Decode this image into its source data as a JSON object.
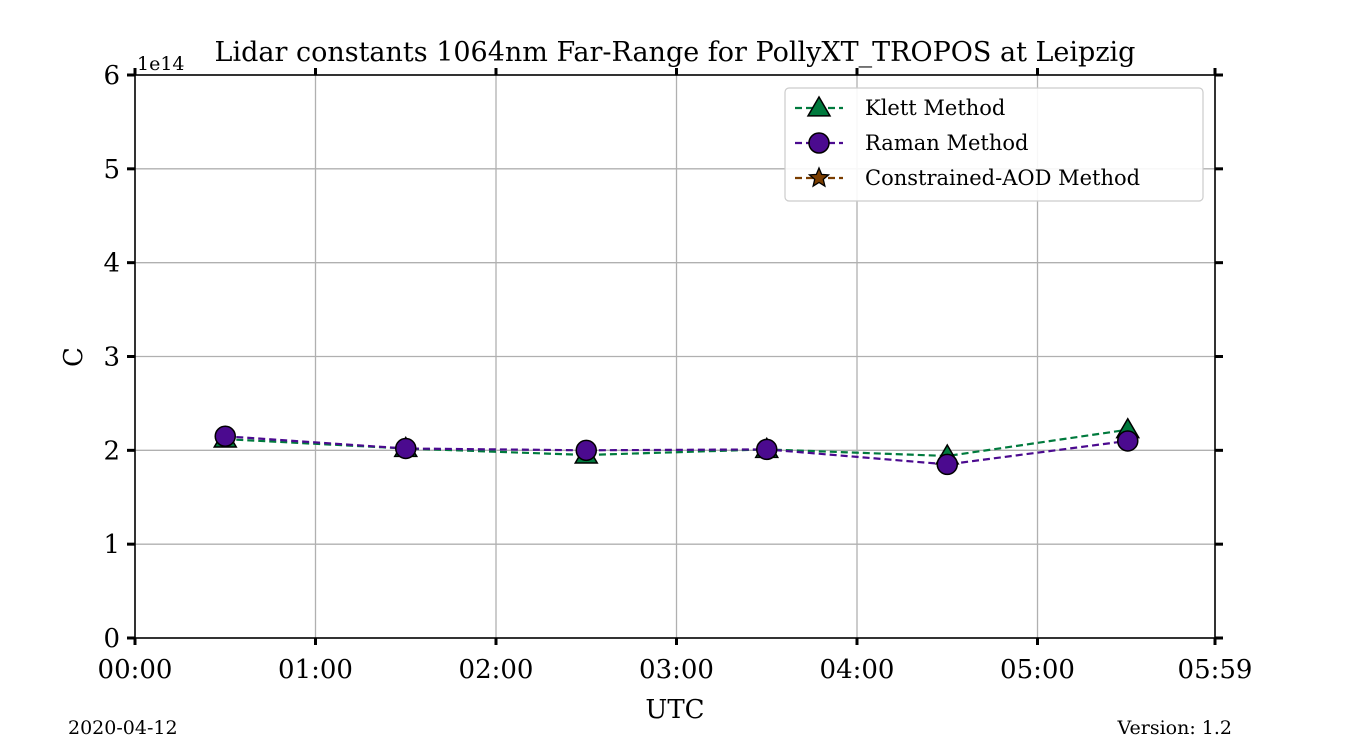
{
  "chart_data": {
    "type": "line",
    "title": "Lidar constants 1064nm Far-Range for PollyXT_TROPOS at Leipzig",
    "xlabel": "UTC",
    "ylabel": "C",
    "y_multiplier": "1e14",
    "xlim": [
      "00:00",
      "05:59"
    ],
    "ylim": [
      0,
      6
    ],
    "x_ticks": [
      "00:00",
      "01:00",
      "02:00",
      "03:00",
      "04:00",
      "05:00",
      "05:59"
    ],
    "y_ticks": [
      "0",
      "1",
      "2",
      "3",
      "4",
      "5",
      "6"
    ],
    "grid": true,
    "legend_position": "top-right",
    "series": [
      {
        "name": "Klett Method",
        "color": "#007a3d",
        "marker": "triangle",
        "line_style": "dashed",
        "x": [
          "00:30",
          "01:30",
          "02:30",
          "03:30",
          "04:30",
          "05:30"
        ],
        "values": [
          2.12,
          2.02,
          1.95,
          2.01,
          1.94,
          2.22
        ]
      },
      {
        "name": "Raman Method",
        "color": "#4b0a8f",
        "marker": "circle",
        "line_style": "dashed",
        "x": [
          "00:30",
          "01:30",
          "02:30",
          "03:30",
          "04:30",
          "05:30"
        ],
        "values": [
          2.15,
          2.02,
          2.0,
          2.01,
          1.85,
          2.1
        ]
      },
      {
        "name": "Constrained-AOD Method",
        "color": "#7a3d00",
        "marker": "star",
        "line_style": "dashed",
        "x": [],
        "values": []
      }
    ]
  },
  "footer": {
    "date": "2020-04-12",
    "version": "Version: 1.2"
  }
}
